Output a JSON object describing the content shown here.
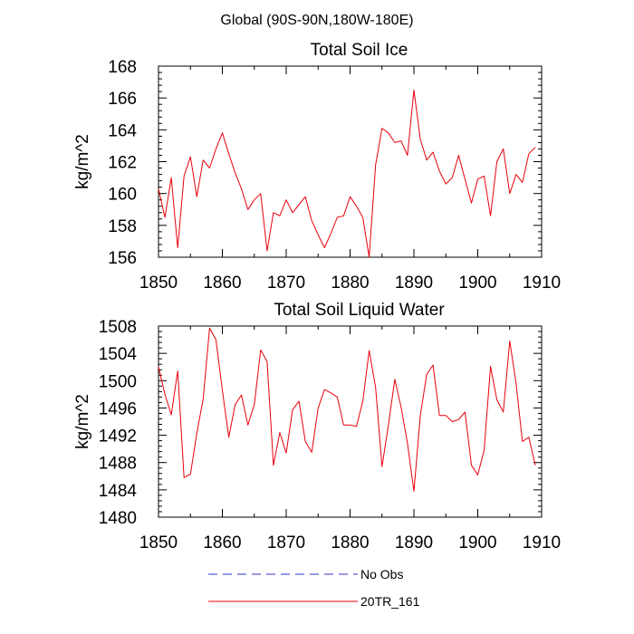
{
  "figure": {
    "suptitle": "Global (90S-90N,180W-180E)"
  },
  "colors": {
    "obs": "#3333cc",
    "model": "#e8000b",
    "axis": "#000000"
  },
  "chart_data": [
    {
      "type": "line",
      "title": "Total Soil Ice",
      "xlabel": "",
      "ylabel": "kg/m^2",
      "xlim": [
        1850,
        1910
      ],
      "ylim": [
        156,
        168
      ],
      "xticks": [
        1850,
        1860,
        1870,
        1880,
        1890,
        1900,
        1910
      ],
      "yticks": [
        156,
        158,
        160,
        162,
        164,
        166,
        168
      ],
      "x": [
        1850,
        1851,
        1852,
        1853,
        1854,
        1855,
        1856,
        1857,
        1858,
        1859,
        1860,
        1861,
        1862,
        1863,
        1864,
        1865,
        1866,
        1867,
        1868,
        1869,
        1870,
        1871,
        1872,
        1873,
        1874,
        1875,
        1876,
        1877,
        1878,
        1879,
        1880,
        1881,
        1882,
        1883,
        1884,
        1885,
        1886,
        1887,
        1888,
        1889,
        1890,
        1891,
        1892,
        1893,
        1894,
        1895,
        1896,
        1897,
        1898,
        1899,
        1900,
        1901,
        1902,
        1903,
        1904,
        1905,
        1906,
        1907,
        1908,
        1909
      ],
      "series": [
        {
          "name": "20TR_161",
          "values": [
            160.3,
            158.5,
            161.0,
            156.6,
            161.1,
            162.3,
            159.8,
            162.1,
            161.6,
            162.8,
            163.8,
            162.5,
            161.3,
            160.3,
            159.0,
            159.6,
            160.0,
            156.4,
            158.8,
            158.6,
            159.6,
            158.8,
            159.3,
            159.8,
            158.3,
            157.4,
            156.6,
            157.5,
            158.5,
            158.6,
            159.8,
            159.2,
            158.5,
            156.0,
            161.8,
            164.1,
            163.8,
            163.2,
            163.3,
            162.4,
            166.5,
            163.4,
            162.1,
            162.6,
            161.4,
            160.6,
            161.0,
            162.4,
            160.9,
            159.4,
            160.9,
            161.1,
            158.6,
            162.0,
            162.8,
            160.0,
            161.2,
            160.7,
            162.5,
            162.9
          ]
        }
      ]
    },
    {
      "type": "line",
      "title": "Total Soil Liquid Water",
      "xlabel": "",
      "ylabel": "kg/m^2",
      "xlim": [
        1850,
        1910
      ],
      "ylim": [
        1480,
        1508
      ],
      "xticks": [
        1850,
        1860,
        1870,
        1880,
        1890,
        1900,
        1910
      ],
      "yticks": [
        1480,
        1484,
        1488,
        1492,
        1496,
        1500,
        1504,
        1508
      ],
      "x": [
        1850,
        1851,
        1852,
        1853,
        1854,
        1855,
        1856,
        1857,
        1858,
        1859,
        1860,
        1861,
        1862,
        1863,
        1864,
        1865,
        1866,
        1867,
        1868,
        1869,
        1870,
        1871,
        1872,
        1873,
        1874,
        1875,
        1876,
        1877,
        1878,
        1879,
        1880,
        1881,
        1882,
        1883,
        1884,
        1885,
        1886,
        1887,
        1888,
        1889,
        1890,
        1891,
        1892,
        1893,
        1894,
        1895,
        1896,
        1897,
        1898,
        1899,
        1900,
        1901,
        1902,
        1903,
        1904,
        1905,
        1906,
        1907,
        1908,
        1909
      ],
      "series": [
        {
          "name": "20TR_161",
          "values": [
            1502.0,
            1498.0,
            1495.0,
            1501.4,
            1485.8,
            1486.3,
            1492.3,
            1497.3,
            1507.7,
            1506.0,
            1498.6,
            1491.7,
            1496.5,
            1497.9,
            1493.5,
            1496.5,
            1504.5,
            1502.8,
            1487.6,
            1492.4,
            1489.4,
            1495.7,
            1497.0,
            1491.1,
            1489.5,
            1496.0,
            1498.7,
            1498.2,
            1497.6,
            1493.5,
            1493.5,
            1493.3,
            1497.0,
            1504.4,
            1499.0,
            1487.4,
            1493.5,
            1500.2,
            1496.1,
            1490.8,
            1483.8,
            1494.9,
            1500.9,
            1502.3,
            1494.9,
            1494.9,
            1494.0,
            1494.3,
            1495.4,
            1487.6,
            1486.2,
            1489.8,
            1502.1,
            1497.2,
            1495.4,
            1505.8,
            1499.6,
            1491.1,
            1491.7,
            1487.6
          ]
        }
      ]
    }
  ],
  "legend": {
    "items": [
      {
        "label": "No Obs",
        "style": "dashed",
        "color": "#3333cc"
      },
      {
        "label": "20TR_161",
        "style": "solid",
        "color": "#e8000b"
      }
    ]
  }
}
